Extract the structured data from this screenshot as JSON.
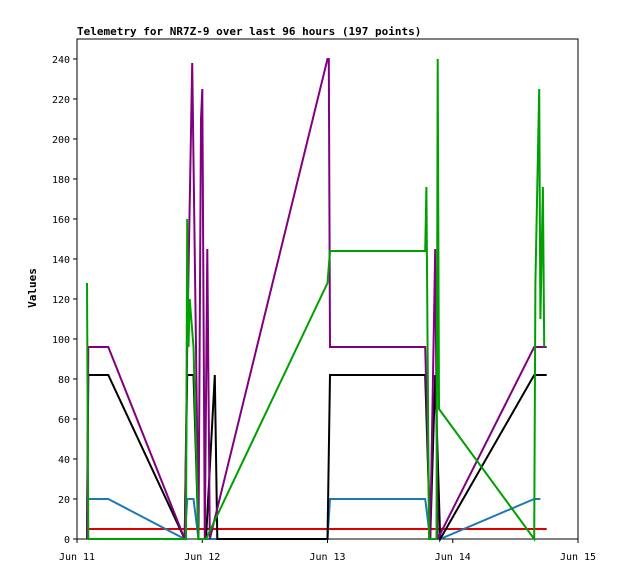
{
  "chart_data": {
    "type": "line",
    "title": "Telemetry for NR7Z-9 over last 96 hours (197 points)",
    "xlabel": "",
    "ylabel": "Values",
    "xlim": [
      "Jun 11",
      "Jun 15"
    ],
    "ylim": [
      0,
      250
    ],
    "yticks": [
      0,
      20,
      40,
      60,
      80,
      100,
      120,
      140,
      160,
      180,
      200,
      220,
      240
    ],
    "xticks": [
      "Jun 11",
      "Jun 12",
      "Jun 13",
      "Jun 14",
      "Jun 15"
    ],
    "grid": false,
    "legend": "none",
    "series": [
      {
        "color": "#dd0000",
        "points": [
          [
            11.08,
            5
          ],
          [
            14.75,
            5
          ]
        ]
      },
      {
        "color": "#1f77b4",
        "points": [
          [
            11.08,
            20
          ],
          [
            11.25,
            20
          ],
          [
            11.86,
            0
          ],
          [
            11.88,
            20
          ],
          [
            11.93,
            20
          ],
          [
            11.97,
            0
          ],
          [
            12.03,
            0
          ],
          [
            13.0,
            0
          ],
          [
            13.02,
            20
          ],
          [
            13.78,
            20
          ],
          [
            13.82,
            0
          ],
          [
            13.86,
            0
          ],
          [
            13.9,
            0
          ],
          [
            14.65,
            20
          ],
          [
            14.7,
            20
          ]
        ]
      },
      {
        "color": "#000000",
        "points": [
          [
            11.08,
            0
          ],
          [
            11.09,
            82
          ],
          [
            11.25,
            82
          ],
          [
            11.86,
            0
          ],
          [
            11.88,
            82
          ],
          [
            11.93,
            82
          ],
          [
            11.97,
            0
          ],
          [
            12.03,
            0
          ],
          [
            12.1,
            82
          ],
          [
            12.12,
            0
          ],
          [
            13.0,
            0
          ],
          [
            13.02,
            82
          ],
          [
            13.78,
            82
          ],
          [
            13.82,
            0
          ],
          [
            13.86,
            82
          ],
          [
            13.9,
            0
          ],
          [
            14.65,
            82
          ],
          [
            14.75,
            82
          ]
        ]
      },
      {
        "color": "#800080",
        "points": [
          [
            11.08,
            0
          ],
          [
            11.09,
            96
          ],
          [
            11.25,
            96
          ],
          [
            11.86,
            0
          ],
          [
            11.88,
            96
          ],
          [
            11.92,
            238
          ],
          [
            11.95,
            96
          ],
          [
            11.97,
            0
          ],
          [
            11.99,
            210
          ],
          [
            12.0,
            225
          ],
          [
            12.02,
            0
          ],
          [
            12.04,
            145
          ],
          [
            12.06,
            0
          ],
          [
            13.0,
            240
          ],
          [
            13.01,
            240
          ],
          [
            13.02,
            96
          ],
          [
            13.78,
            96
          ],
          [
            13.82,
            0
          ],
          [
            13.86,
            145
          ],
          [
            13.88,
            0
          ],
          [
            14.65,
            96
          ],
          [
            14.75,
            96
          ]
        ]
      },
      {
        "color": "#00a000",
        "points": [
          [
            11.08,
            128
          ],
          [
            11.09,
            0
          ],
          [
            11.87,
            0
          ],
          [
            11.88,
            160
          ],
          [
            11.89,
            96
          ],
          [
            11.9,
            120
          ],
          [
            11.93,
            96
          ],
          [
            11.97,
            0
          ],
          [
            12.03,
            0
          ],
          [
            13.0,
            128
          ],
          [
            13.02,
            144
          ],
          [
            13.78,
            144
          ],
          [
            13.79,
            176
          ],
          [
            13.81,
            0
          ],
          [
            13.87,
            0
          ],
          [
            13.88,
            240
          ],
          [
            13.89,
            65
          ],
          [
            14.65,
            0
          ],
          [
            14.66,
            128
          ],
          [
            14.69,
            225
          ],
          [
            14.7,
            110
          ],
          [
            14.72,
            176
          ],
          [
            14.73,
            96
          ]
        ]
      }
    ]
  }
}
